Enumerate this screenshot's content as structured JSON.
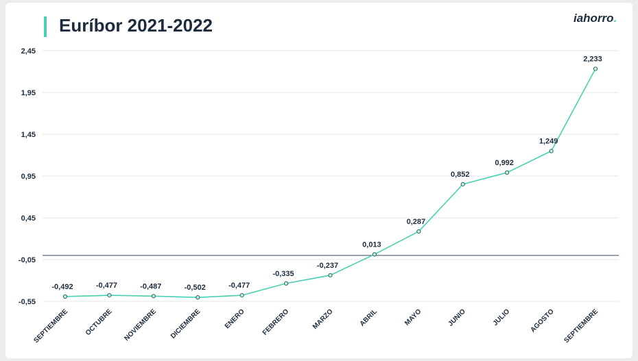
{
  "title": "Euríbor 2021-2022",
  "brand": {
    "name": "iahorro",
    "dot": "."
  },
  "colors": {
    "accent": "#47d1b3",
    "text": "#1c2b3d",
    "grid": "#e3e6e8",
    "baseline": "#34495e"
  },
  "chart_data": {
    "type": "line",
    "title": "Euríbor 2021-2022",
    "xlabel": "",
    "ylabel": "",
    "categories": [
      "SEPTIEMBRE",
      "OCTUBRE",
      "NOVIEMBRE",
      "DICIEMBRE",
      "ENERO",
      "FEBRERO",
      "MARZO",
      "ABRIL",
      "MAYO",
      "JUNIO",
      "JULIO",
      "AGOSTO",
      "SEPTIEMBRE"
    ],
    "series": [
      {
        "name": "Euríbor",
        "values": [
          -0.492,
          -0.477,
          -0.487,
          -0.502,
          -0.477,
          -0.335,
          -0.237,
          0.013,
          0.287,
          0.852,
          0.992,
          1.249,
          2.233
        ],
        "labels": [
          "-0,492",
          "-0,477",
          "-0,487",
          "-0,502",
          "-0,477",
          "-0,335",
          "-0,237",
          "0,013",
          "0,287",
          "0,852",
          "0,992",
          "1,249",
          "2,233"
        ]
      }
    ],
    "yticks": [
      -0.55,
      -0.05,
      0.45,
      0.95,
      1.45,
      1.95,
      2.45
    ],
    "ytick_labels": [
      "-0,55",
      "-0,05",
      "0,45",
      "0,95",
      "1,45",
      "1,95",
      "2,45"
    ],
    "ylim": [
      -0.55,
      2.45
    ],
    "reference_line": 0,
    "grid": true,
    "legend": "none"
  }
}
